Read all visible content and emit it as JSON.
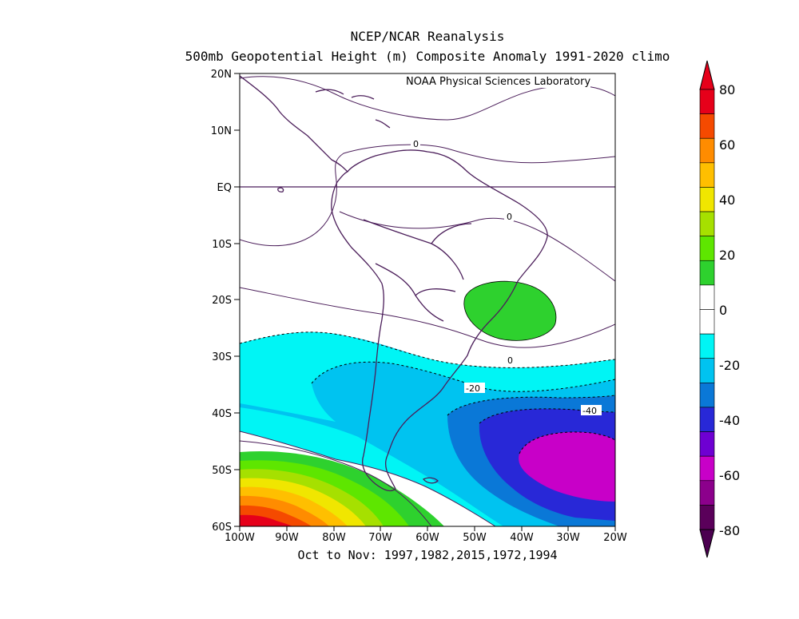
{
  "header": {
    "title_line1": "NCEP/NCAR Reanalysis",
    "title_line2": "500mb Geopotential Height (m) Composite Anomaly 1991-2020 climo"
  },
  "credit": "NOAA Physical Sciences Laboratory",
  "footer": {
    "period_label": "Oct to Nov: 1997,1982,2015,1972,1994"
  },
  "map": {
    "lon_ticks": [
      "100W",
      "90W",
      "80W",
      "70W",
      "60W",
      "50W",
      "40W",
      "30W",
      "20W"
    ],
    "lat_ticks": [
      "20N",
      "10N",
      "EQ",
      "10S",
      "20S",
      "30S",
      "40S",
      "50S",
      "60S"
    ],
    "contour_labels": [
      {
        "text": "0"
      },
      {
        "text": "0"
      },
      {
        "text": "0"
      },
      {
        "text": "-20"
      },
      {
        "text": "-40"
      }
    ]
  },
  "colorbar": {
    "ticks": [
      "80",
      "60",
      "40",
      "20",
      "0",
      "-20",
      "-40",
      "-60",
      "-80"
    ],
    "colors": [
      "#e6001a",
      "#f54a00",
      "#ff8c00",
      "#ffbf00",
      "#f0e600",
      "#a6e000",
      "#5ee600",
      "#2ed12e",
      "#ffffff",
      "#ffffff",
      "#00f5f5",
      "#00c3f0",
      "#0a78d7",
      "#2828d7",
      "#6e00d2",
      "#c800c8",
      "#8c008c",
      "#5a005a"
    ]
  }
}
